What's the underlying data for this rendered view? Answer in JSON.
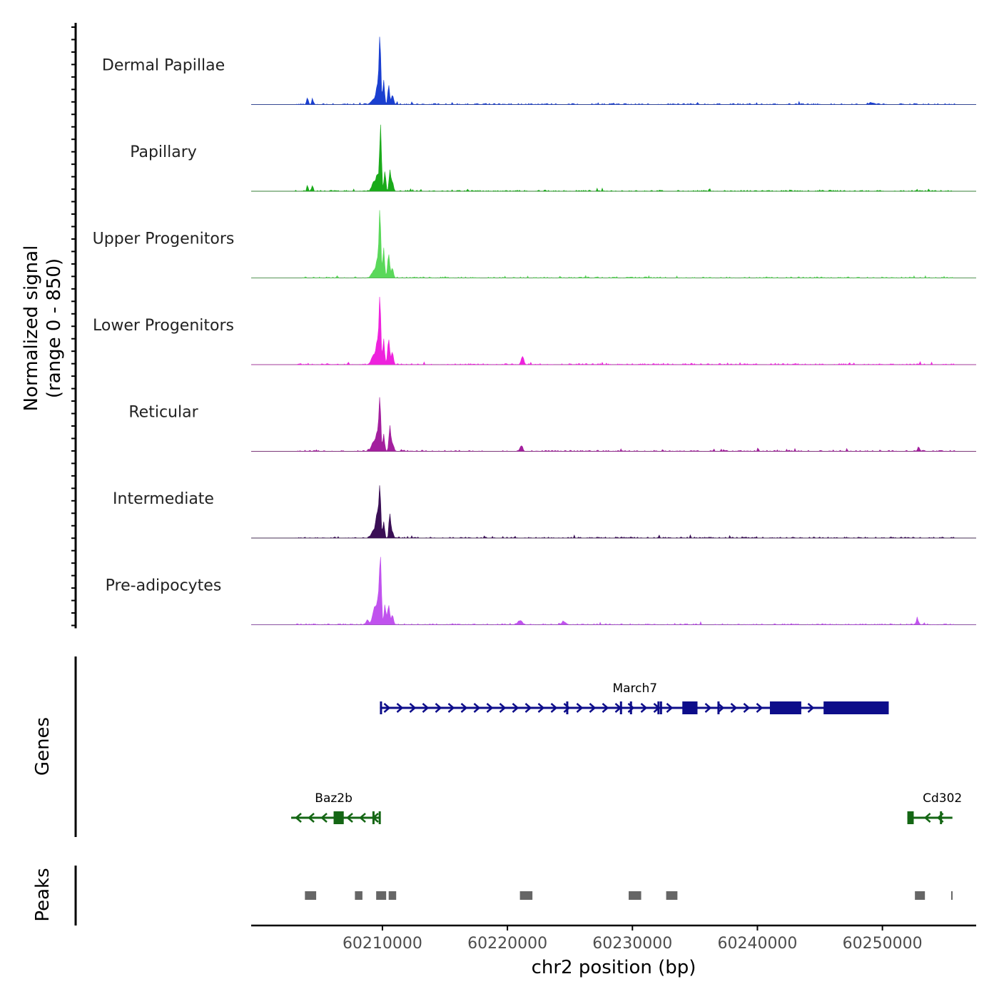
{
  "chart_data": {
    "type": "area",
    "title": "",
    "chromosome": "chr2",
    "xlabel": "chr2 position (bp)",
    "xlim": [
      60199500,
      60257500
    ],
    "x_ticks": [
      60210000,
      60220000,
      60230000,
      60240000,
      60250000
    ],
    "x_tick_labels": [
      "60210000",
      "60220000",
      "60230000",
      "60240000",
      "60250000"
    ],
    "coverage": {
      "ylabel_line1": "Normalized signal",
      "ylabel_line2": "(range 0 - 850)",
      "ylim": [
        0,
        850
      ],
      "tracks": [
        {
          "name": "Dermal Papillae",
          "color": "#1a3fd0",
          "peaks": [
            [
              60204000,
              90,
              80
            ],
            [
              60204400,
              70,
              80
            ],
            [
              60209300,
              60,
              300
            ],
            [
              60209600,
              220,
              150
            ],
            [
              60209800,
              850,
              100
            ],
            [
              60210100,
              300,
              100
            ],
            [
              60210500,
              240,
              100
            ],
            [
              60210800,
              120,
              120
            ],
            [
              60249200,
              20,
              300
            ]
          ]
        },
        {
          "name": "Papillary",
          "color": "#1aaa1a",
          "peaks": [
            [
              60204000,
              80,
              80
            ],
            [
              60204400,
              70,
              80
            ],
            [
              60209300,
              120,
              200
            ],
            [
              60209600,
              200,
              150
            ],
            [
              60209850,
              820,
              100
            ],
            [
              60210200,
              240,
              100
            ],
            [
              60210600,
              260,
              100
            ],
            [
              60210800,
              120,
              120
            ]
          ]
        },
        {
          "name": "Upper Progenitors",
          "color": "#5ad85a",
          "peaks": [
            [
              60209300,
              80,
              250
            ],
            [
              60209600,
              220,
              150
            ],
            [
              60209800,
              850,
              100
            ],
            [
              60210100,
              380,
              100
            ],
            [
              60210500,
              300,
              120
            ],
            [
              60210800,
              120,
              120
            ]
          ]
        },
        {
          "name": "Lower Progenitors",
          "color": "#ee22dd",
          "peaks": [
            [
              60209300,
              120,
              250
            ],
            [
              60209600,
              260,
              150
            ],
            [
              60209800,
              850,
              100
            ],
            [
              60210100,
              320,
              100
            ],
            [
              60210500,
              320,
              120
            ],
            [
              60210800,
              150,
              120
            ],
            [
              60221200,
              100,
              150
            ]
          ]
        },
        {
          "name": "Reticular",
          "color": "#a31f9e",
          "peaks": [
            [
              60209300,
              120,
              250
            ],
            [
              60209600,
              220,
              150
            ],
            [
              60209800,
              650,
              100
            ],
            [
              60210100,
              220,
              100
            ],
            [
              60210600,
              320,
              100
            ],
            [
              60210800,
              100,
              120
            ],
            [
              60221100,
              60,
              150
            ],
            [
              60252900,
              50,
              120
            ]
          ]
        },
        {
          "name": "Intermediate",
          "color": "#3a0f55",
          "peaks": [
            [
              60209300,
              100,
              250
            ],
            [
              60209600,
              300,
              150
            ],
            [
              60209800,
              620,
              100
            ],
            [
              60210100,
              200,
              100
            ],
            [
              60210600,
              300,
              100
            ],
            [
              60210800,
              80,
              120
            ]
          ]
        },
        {
          "name": "Pre-adipocytes",
          "color": "#c052ee",
          "peaks": [
            [
              60208800,
              60,
              150
            ],
            [
              60209400,
              220,
              250
            ],
            [
              60209700,
              300,
              150
            ],
            [
              60209850,
              780,
              100
            ],
            [
              60210200,
              250,
              100
            ],
            [
              60210500,
              250,
              120
            ],
            [
              60210800,
              120,
              120
            ],
            [
              60221000,
              50,
              250
            ],
            [
              60224500,
              40,
              200
            ],
            [
              60252800,
              60,
              150
            ]
          ]
        }
      ]
    },
    "genes": {
      "label": "Genes",
      "items": [
        {
          "name": "March7",
          "color": "#0d0d8a",
          "strand": "+",
          "row": 0,
          "start": 60209800,
          "end": 60250500,
          "exons": [
            [
              60209800,
              60209900
            ],
            [
              60224700,
              60224800
            ],
            [
              60229000,
              60229100
            ],
            [
              60229800,
              60229900
            ],
            [
              60232000,
              60232100
            ],
            [
              60232200,
              60232300
            ],
            [
              60234000,
              60235200
            ],
            [
              60236800,
              60236900
            ],
            [
              60241000,
              60243500
            ],
            [
              60245300,
              60250500
            ]
          ],
          "cds_rects": [
            [
              60234000,
              60235200
            ],
            [
              60241000,
              60243500
            ],
            [
              60245300,
              60250500
            ]
          ]
        },
        {
          "name": "Baz2b",
          "color": "#146614",
          "strand": "-",
          "row": 1,
          "start": 60202700,
          "end": 60209800,
          "exons": [
            [
              60206100,
              60206400
            ],
            [
              60206500,
              60206900
            ],
            [
              60209200,
              60209300
            ],
            [
              60209700,
              60209800
            ]
          ],
          "cds_rects": [
            [
              60206100,
              60206900
            ]
          ]
        },
        {
          "name": "Cd302",
          "color": "#146614",
          "strand": "-",
          "row": 1,
          "start": 60252000,
          "end": 60255600,
          "exons": [
            [
              60252000,
              60252500
            ],
            [
              60254600,
              60254700
            ]
          ],
          "cds_rects": [
            [
              60252000,
              60252500
            ]
          ]
        }
      ]
    },
    "peaks": {
      "label": "Peaks",
      "color": "#666666",
      "regions": [
        [
          60203800,
          60204700
        ],
        [
          60207800,
          60208400
        ],
        [
          60209500,
          60210300
        ],
        [
          60210500,
          60211100
        ],
        [
          60221000,
          60222000
        ],
        [
          60229700,
          60230700
        ],
        [
          60232700,
          60233600
        ],
        [
          60252600,
          60253400
        ],
        [
          60255500,
          60255600
        ]
      ]
    }
  }
}
